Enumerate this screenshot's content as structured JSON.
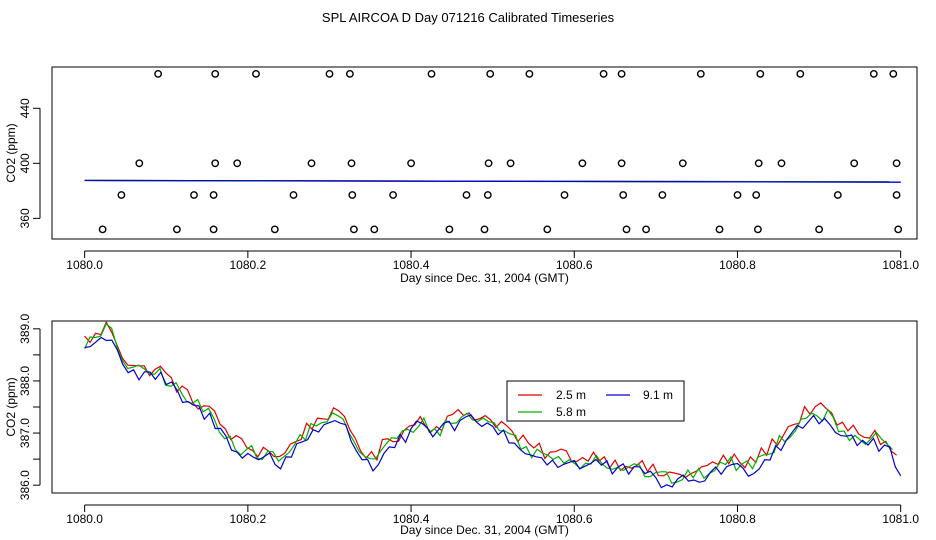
{
  "title": "SPL AIRCOA D  Day 071216  Calibrated Timeseries",
  "chart_data": [
    {
      "type": "scatter",
      "xlabel": "Day since Dec. 31, 2004 (GMT)",
      "ylabel": "CO2 (ppm)",
      "xlim": [
        1079.96,
        1081.02
      ],
      "ylim": [
        345,
        470
      ],
      "xticks": [
        1080.0,
        1080.2,
        1080.4,
        1080.6,
        1080.8,
        1081.0
      ],
      "xtick_labels": [
        "1080.0",
        "1080.2",
        "1080.4",
        "1080.6",
        "1080.8",
        "1081.0"
      ],
      "yticks": [
        360,
        400,
        440
      ],
      "ytick_labels": [
        "360",
        "400",
        "440"
      ],
      "markers": [
        {
          "x": [
            1080.09,
            1080.16,
            1080.21,
            1080.3,
            1080.325,
            1080.425,
            1080.497,
            1080.545,
            1080.636,
            1080.658,
            1080.755,
            1080.828,
            1080.877,
            1080.967,
            1080.991
          ],
          "y": 465
        },
        {
          "x": [
            1080.067,
            1080.16,
            1080.187,
            1080.278,
            1080.327,
            1080.4,
            1080.495,
            1080.522,
            1080.61,
            1080.658,
            1080.733,
            1080.826,
            1080.854,
            1080.943,
            1080.995
          ],
          "y": 400
        },
        {
          "x": [
            1080.045,
            1080.134,
            1080.158,
            1080.256,
            1080.328,
            1080.378,
            1080.468,
            1080.494,
            1080.588,
            1080.66,
            1080.708,
            1080.8,
            1080.823,
            1080.923,
            1080.995
          ],
          "y": 377
        },
        {
          "x": [
            1080.022,
            1080.113,
            1080.158,
            1080.233,
            1080.33,
            1080.355,
            1080.447,
            1080.49,
            1080.567,
            1080.664,
            1080.688,
            1080.778,
            1080.825,
            1080.9,
            1080.997
          ],
          "y": 352
        }
      ],
      "series": [
        {
          "name": "2.5 m",
          "color": "#e00000",
          "x": [
            1080.0,
            1081.0
          ],
          "values": [
            387.5,
            386.5
          ]
        },
        {
          "name": "5.8 m",
          "color": "#00b000",
          "x": [
            1080.0,
            1081.0
          ],
          "values": [
            387.5,
            386.5
          ]
        },
        {
          "name": "9.1 m",
          "color": "#0000d0",
          "x": [
            1080.0,
            1081.0
          ],
          "values": [
            387.6,
            386.3
          ]
        }
      ]
    },
    {
      "type": "line",
      "xlabel": "Day since Dec. 31, 2004 (GMT)",
      "ylabel": "CO2 (ppm)",
      "xlim": [
        1079.96,
        1081.02
      ],
      "ylim": [
        385.85,
        389.15
      ],
      "xticks": [
        1080.0,
        1080.2,
        1080.4,
        1080.6,
        1080.8,
        1081.0
      ],
      "xtick_labels": [
        "1080.0",
        "1080.2",
        "1080.4",
        "1080.6",
        "1080.8",
        "1081.0"
      ],
      "yticks": [
        386.0,
        386.5,
        387.0,
        387.5,
        388.0,
        388.5,
        389.0
      ],
      "ytick_labels": [
        "386.0",
        "",
        "387.0",
        "",
        "388.0",
        "",
        "389.0"
      ],
      "legend": {
        "position": "center",
        "entries": [
          "2.5 m",
          "5.8 m",
          "9.1 m"
        ]
      },
      "keypoints": [
        [
          1080.0,
          388.7
        ],
        [
          1080.015,
          388.75
        ],
        [
          1080.03,
          389.0
        ],
        [
          1080.05,
          388.3
        ],
        [
          1080.07,
          388.1
        ],
        [
          1080.09,
          388.15
        ],
        [
          1080.11,
          387.85
        ],
        [
          1080.13,
          387.55
        ],
        [
          1080.15,
          387.4
        ],
        [
          1080.17,
          387.0
        ],
        [
          1080.19,
          386.7
        ],
        [
          1080.21,
          386.55
        ],
        [
          1080.225,
          386.6
        ],
        [
          1080.24,
          386.4
        ],
        [
          1080.26,
          386.8
        ],
        [
          1080.28,
          387.1
        ],
        [
          1080.3,
          387.3
        ],
        [
          1080.32,
          387.1
        ],
        [
          1080.34,
          386.6
        ],
        [
          1080.355,
          386.35
        ],
        [
          1080.37,
          386.8
        ],
        [
          1080.39,
          386.9
        ],
        [
          1080.41,
          387.2
        ],
        [
          1080.43,
          387.0
        ],
        [
          1080.45,
          387.2
        ],
        [
          1080.47,
          387.3
        ],
        [
          1080.49,
          387.2
        ],
        [
          1080.51,
          387.1
        ],
        [
          1080.53,
          386.8
        ],
        [
          1080.55,
          386.6
        ],
        [
          1080.57,
          386.5
        ],
        [
          1080.59,
          386.5
        ],
        [
          1080.61,
          386.4
        ],
        [
          1080.63,
          386.5
        ],
        [
          1080.65,
          386.3
        ],
        [
          1080.67,
          386.35
        ],
        [
          1080.69,
          386.2
        ],
        [
          1080.71,
          386.1
        ],
        [
          1080.73,
          386.1
        ],
        [
          1080.75,
          386.15
        ],
        [
          1080.77,
          386.3
        ],
        [
          1080.79,
          386.4
        ],
        [
          1080.81,
          386.3
        ],
        [
          1080.83,
          386.5
        ],
        [
          1080.85,
          386.8
        ],
        [
          1080.87,
          387.1
        ],
        [
          1080.89,
          387.4
        ],
        [
          1080.91,
          387.3
        ],
        [
          1080.93,
          387.0
        ],
        [
          1080.95,
          386.9
        ],
        [
          1080.97,
          386.85
        ],
        [
          1080.99,
          386.6
        ],
        [
          1081.0,
          386.2
        ]
      ],
      "series": [
        {
          "name": "2.5 m",
          "color": "#e00000",
          "offset": 0.1,
          "end": 1080.995
        },
        {
          "name": "5.8 m",
          "color": "#00b000",
          "offset": 0.03,
          "end": 1080.99
        },
        {
          "name": "9.1 m",
          "color": "#0000d0",
          "offset": -0.05,
          "end": 1081.0
        }
      ]
    }
  ]
}
